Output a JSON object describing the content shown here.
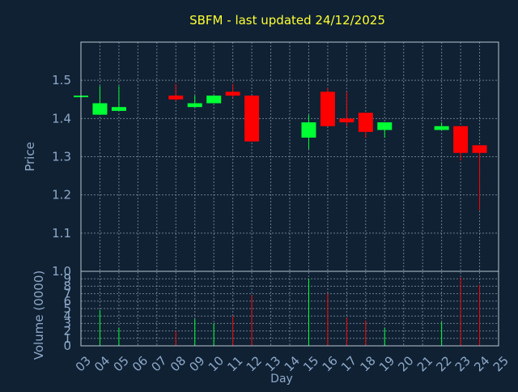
{
  "chart_title": "SBFM - last updated 24/12/2025",
  "colors": {
    "background": "#0f2133",
    "title": "#ffff33",
    "axis_text": "#8fa9c9",
    "grid": "#8a9aaa",
    "frame": "#b9c6d3",
    "up": "#00ff33",
    "down": "#ff0000"
  },
  "chart_data": [
    {
      "type": "candlestick",
      "title": "SBFM - last updated 24/12/2025",
      "ylabel": "Price",
      "xlabel": "",
      "ylim": [
        1.0,
        1.6
      ],
      "yticks": [
        1.0,
        1.1,
        1.2,
        1.3,
        1.4,
        1.5
      ],
      "grid": true,
      "days": [
        "03",
        "04",
        "05",
        "06",
        "07",
        "08",
        "09",
        "10",
        "11",
        "12",
        "13",
        "14",
        "15",
        "16",
        "17",
        "18",
        "19",
        "20",
        "21",
        "22",
        "23",
        "24",
        "25"
      ],
      "candles": [
        {
          "day": "03",
          "open": 1.46,
          "high": 1.46,
          "low": 1.46,
          "close": 1.46
        },
        {
          "day": "04",
          "open": 1.41,
          "high": 1.485,
          "low": 1.41,
          "close": 1.44
        },
        {
          "day": "05",
          "open": 1.42,
          "high": 1.485,
          "low": 1.42,
          "close": 1.43
        },
        {
          "day": "08",
          "open": 1.46,
          "high": 1.49,
          "low": 1.445,
          "close": 1.45
        },
        {
          "day": "09",
          "open": 1.43,
          "high": 1.46,
          "low": 1.43,
          "close": 1.44
        },
        {
          "day": "10",
          "open": 1.44,
          "high": 1.46,
          "low": 1.44,
          "close": 1.46
        },
        {
          "day": "11",
          "open": 1.47,
          "high": 1.49,
          "low": 1.455,
          "close": 1.46
        },
        {
          "day": "12",
          "open": 1.46,
          "high": 1.46,
          "low": 1.34,
          "close": 1.34
        },
        {
          "day": "15",
          "open": 1.35,
          "high": 1.41,
          "low": 1.32,
          "close": 1.39
        },
        {
          "day": "16",
          "open": 1.47,
          "high": 1.48,
          "low": 1.38,
          "close": 1.38
        },
        {
          "day": "17",
          "open": 1.4,
          "high": 1.47,
          "low": 1.38,
          "close": 1.39
        },
        {
          "day": "18",
          "open": 1.415,
          "high": 1.415,
          "low": 1.35,
          "close": 1.365
        },
        {
          "day": "19",
          "open": 1.37,
          "high": 1.39,
          "low": 1.35,
          "close": 1.39
        },
        {
          "day": "22",
          "open": 1.37,
          "high": 1.39,
          "low": 1.37,
          "close": 1.38
        },
        {
          "day": "23",
          "open": 1.38,
          "high": 1.38,
          "low": 1.29,
          "close": 1.31
        },
        {
          "day": "24",
          "open": 1.33,
          "high": 1.33,
          "low": 1.16,
          "close": 1.31
        }
      ]
    },
    {
      "type": "bar",
      "ylabel": "Volume (0000)",
      "xlabel": "Day",
      "ylim": [
        0,
        10
      ],
      "yticks": [
        0,
        1,
        2,
        3,
        4,
        5,
        6,
        7,
        8,
        9,
        10
      ],
      "grid": true,
      "categories": [
        "03",
        "04",
        "05",
        "08",
        "09",
        "10",
        "11",
        "12",
        "15",
        "16",
        "17",
        "18",
        "19",
        "22",
        "23",
        "24"
      ],
      "values": [
        0.2,
        4.8,
        2.4,
        2.0,
        3.6,
        3.0,
        4.0,
        6.8,
        9.0,
        7.0,
        3.8,
        3.4,
        2.4,
        3.2,
        9.2,
        8.2
      ],
      "direction": [
        "up",
        "up",
        "up",
        "down",
        "up",
        "up",
        "down",
        "down",
        "up",
        "down",
        "down",
        "down",
        "up",
        "up",
        "down",
        "down"
      ]
    }
  ]
}
